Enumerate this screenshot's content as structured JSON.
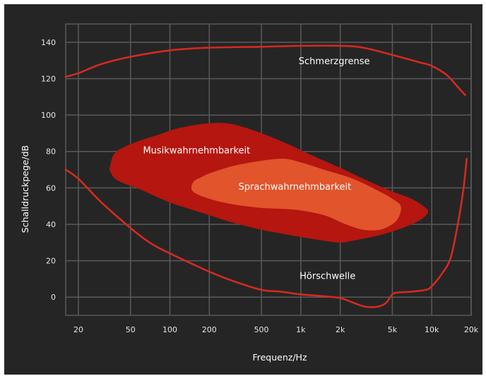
{
  "chart_data": {
    "type": "line",
    "xlabel": "Frequenz/Hz",
    "ylabel": "Schalldruckpege/dB",
    "x_scale": "log",
    "xlim": [
      16,
      20000
    ],
    "ylim": [
      -10,
      150
    ],
    "grid": true,
    "x_ticks": [
      {
        "value": 20,
        "label": "20"
      },
      {
        "value": 50,
        "label": "50"
      },
      {
        "value": 100,
        "label": "100"
      },
      {
        "value": 200,
        "label": "200"
      },
      {
        "value": 500,
        "label": "500"
      },
      {
        "value": 1000,
        "label": "1k"
      },
      {
        "value": 2000,
        "label": "2k"
      },
      {
        "value": 5000,
        "label": "5k"
      },
      {
        "value": 10000,
        "label": "10k"
      },
      {
        "value": 20000,
        "label": "20k"
      }
    ],
    "y_ticks": [
      {
        "value": 0,
        "label": "0"
      },
      {
        "value": 20,
        "label": "20"
      },
      {
        "value": 40,
        "label": "40"
      },
      {
        "value": 60,
        "label": "60"
      },
      {
        "value": 80,
        "label": "80"
      },
      {
        "value": 100,
        "label": "100"
      },
      {
        "value": 120,
        "label": "120"
      },
      {
        "value": 140,
        "label": "140"
      }
    ],
    "series": [
      {
        "name": "Schmerzgrense",
        "kind": "line",
        "color": "#d42a20",
        "points": [
          [
            16,
            121
          ],
          [
            20,
            123
          ],
          [
            30,
            128
          ],
          [
            50,
            132
          ],
          [
            100,
            135.5
          ],
          [
            200,
            137
          ],
          [
            500,
            137.5
          ],
          [
            1000,
            138
          ],
          [
            2000,
            138
          ],
          [
            3000,
            137
          ],
          [
            5000,
            133
          ],
          [
            8000,
            129
          ],
          [
            10000,
            127
          ],
          [
            13000,
            122
          ],
          [
            16000,
            115
          ],
          [
            18000,
            111
          ]
        ]
      },
      {
        "name": "Hörschwelle",
        "kind": "line",
        "color": "#d42a20",
        "points": [
          [
            16,
            70
          ],
          [
            20,
            65
          ],
          [
            30,
            52
          ],
          [
            50,
            38
          ],
          [
            70,
            30
          ],
          [
            100,
            24
          ],
          [
            200,
            14
          ],
          [
            300,
            9
          ],
          [
            500,
            4
          ],
          [
            700,
            3
          ],
          [
            1000,
            1.5
          ],
          [
            1500,
            0.5
          ],
          [
            2000,
            -0.5
          ],
          [
            2500,
            -3
          ],
          [
            3000,
            -5
          ],
          [
            3500,
            -5.5
          ],
          [
            4000,
            -5
          ],
          [
            4500,
            -3
          ],
          [
            5000,
            1.5
          ],
          [
            5500,
            2.5
          ],
          [
            7000,
            3
          ],
          [
            9000,
            4
          ],
          [
            10000,
            6
          ],
          [
            12000,
            13
          ],
          [
            14000,
            22
          ],
          [
            16000,
            42
          ],
          [
            17500,
            60
          ],
          [
            18500,
            76
          ]
        ]
      },
      {
        "name": "Musikwahrnehmbarkeit",
        "kind": "area",
        "color": "#b5160f",
        "points": [
          [
            35,
            72
          ],
          [
            38,
            79
          ],
          [
            50,
            84
          ],
          [
            80,
            89
          ],
          [
            120,
            93
          ],
          [
            200,
            95.5
          ],
          [
            300,
            95
          ],
          [
            500,
            90
          ],
          [
            800,
            84
          ],
          [
            1200,
            78
          ],
          [
            2000,
            71
          ],
          [
            3000,
            65
          ],
          [
            5000,
            58
          ],
          [
            7000,
            54
          ],
          [
            9000,
            49
          ],
          [
            9300,
            46
          ],
          [
            8000,
            42
          ],
          [
            6000,
            38
          ],
          [
            4000,
            34
          ],
          [
            2500,
            31
          ],
          [
            2000,
            30
          ],
          [
            1500,
            31
          ],
          [
            1000,
            33
          ],
          [
            700,
            35
          ],
          [
            500,
            37
          ],
          [
            300,
            41
          ],
          [
            200,
            45
          ],
          [
            100,
            52
          ],
          [
            60,
            59
          ],
          [
            40,
            64
          ],
          [
            35,
            69
          ]
        ]
      },
      {
        "name": "Sprachwahrnehmbarkeit",
        "kind": "area",
        "color": "#e2542c",
        "points": [
          [
            150,
            63
          ],
          [
            175,
            66
          ],
          [
            220,
            69
          ],
          [
            350,
            73
          ],
          [
            700,
            76
          ],
          [
            1000,
            74
          ],
          [
            1500,
            70
          ],
          [
            2500,
            65
          ],
          [
            4000,
            58
          ],
          [
            5000,
            54
          ],
          [
            5800,
            50
          ],
          [
            5600,
            44
          ],
          [
            5000,
            40
          ],
          [
            4000,
            37
          ],
          [
            3000,
            37
          ],
          [
            2200,
            40
          ],
          [
            1500,
            45
          ],
          [
            900,
            48
          ],
          [
            500,
            49
          ],
          [
            300,
            51
          ],
          [
            200,
            54
          ],
          [
            150,
            58
          ]
        ]
      }
    ],
    "annotations": [
      {
        "text": "Schmerzgrense",
        "x": 1800,
        "y": 128
      },
      {
        "text": "Musikwahrnehmbarkeit",
        "x": 160,
        "y": 79
      },
      {
        "text": "Sprachwahrnehmbarkeit",
        "x": 900,
        "y": 59
      },
      {
        "text": "Hörschwelle",
        "x": 1600,
        "y": 10
      }
    ]
  },
  "colors": {
    "background": "#252525",
    "grid": "#5a5a5a",
    "text": "#e6e6e6"
  }
}
